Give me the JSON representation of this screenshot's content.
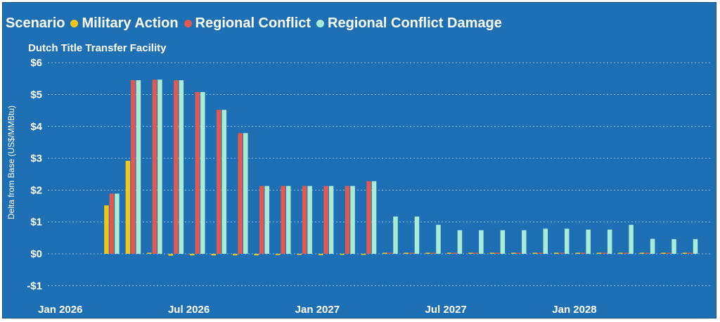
{
  "legend": {
    "title": "Scenario",
    "items": [
      {
        "label": "Military Action",
        "color": "#f5c518"
      },
      {
        "label": "Regional Conflict",
        "color": "#e05a52"
      },
      {
        "label": "Regional Conflict Damage",
        "color": "#a8ecd6"
      }
    ]
  },
  "chart_data": {
    "type": "bar",
    "title": "Dutch Title Transfer Facility",
    "xlabel": "",
    "ylabel": "Delta from Base (US$/MMBtu)",
    "ylim": [
      -1,
      6
    ],
    "yticks": [
      {
        "value": 6,
        "label": "$6"
      },
      {
        "value": 5,
        "label": "$5"
      },
      {
        "value": 4,
        "label": "$4"
      },
      {
        "value": 3,
        "label": "$3"
      },
      {
        "value": 2,
        "label": "$2"
      },
      {
        "value": 1,
        "label": "$1"
      },
      {
        "value": 0,
        "label": "$0"
      },
      {
        "value": -1,
        "label": "-$1"
      }
    ],
    "xticks": [
      {
        "index": 0,
        "label": "Jan 2026"
      },
      {
        "index": 6,
        "label": "Jul 2026"
      },
      {
        "index": 12,
        "label": "Jan 2027"
      },
      {
        "index": 18,
        "label": "Jul 2027"
      },
      {
        "index": 24,
        "label": "Jan 2028"
      }
    ],
    "categories": [
      "Jan 2026",
      "Feb 2026",
      "Mar 2026",
      "Apr 2026",
      "May 2026",
      "Jun 2026",
      "Jul 2026",
      "Aug 2026",
      "Sep 2026",
      "Oct 2026",
      "Nov 2026",
      "Dec 2026",
      "Jan 2027",
      "Feb 2027",
      "Mar 2027",
      "Apr 2027",
      "May 2027",
      "Jun 2027",
      "Jul 2027",
      "Aug 2027",
      "Sep 2027",
      "Oct 2027",
      "Nov 2027",
      "Dec 2027",
      "Jan 2028",
      "Feb 2028",
      "Mar 2028",
      "Apr 2028",
      "May 2028",
      "Jun 2028"
    ],
    "series": [
      {
        "name": "Military Action",
        "color": "#f5c518",
        "values": [
          null,
          null,
          1.52,
          2.92,
          0.03,
          -0.06,
          -0.05,
          -0.05,
          -0.05,
          -0.05,
          -0.04,
          -0.03,
          -0.04,
          -0.03,
          -0.02,
          0.02,
          0.01,
          0.01,
          0.01,
          0.01,
          0.01,
          0.01,
          0.01,
          0.02,
          0.01,
          0.02,
          0.01,
          0.02,
          0.02,
          0.02
        ]
      },
      {
        "name": "Regional Conflict",
        "color": "#e05a52",
        "values": [
          null,
          null,
          1.89,
          5.45,
          5.47,
          5.45,
          5.08,
          4.52,
          3.79,
          2.13,
          2.13,
          2.13,
          2.13,
          2.13,
          2.28,
          0.02,
          0.01,
          0.01,
          0.01,
          0.01,
          0.01,
          0.01,
          0.01,
          0.02,
          0.01,
          0.02,
          0.02,
          0.02,
          0.02,
          0.02
        ]
      },
      {
        "name": "Regional Conflict Damage",
        "color": "#a8ecd6",
        "values": [
          null,
          null,
          1.89,
          5.45,
          5.47,
          5.45,
          5.08,
          4.52,
          3.79,
          2.13,
          2.13,
          2.13,
          2.13,
          2.13,
          2.28,
          1.17,
          1.17,
          0.91,
          0.74,
          0.74,
          0.74,
          0.74,
          0.79,
          0.79,
          0.76,
          0.76,
          0.91,
          0.47,
          0.46,
          0.46
        ]
      }
    ]
  }
}
